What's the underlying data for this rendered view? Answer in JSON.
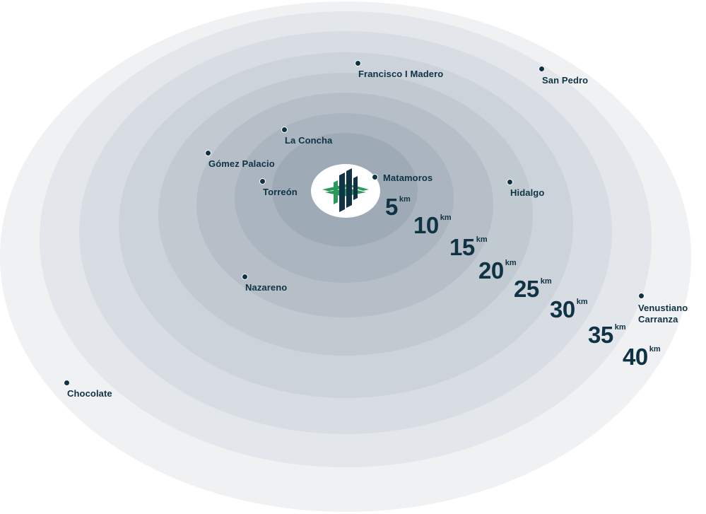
{
  "map": {
    "places": [
      {
        "name": "Francisco I Madero"
      },
      {
        "name": "San Pedro"
      },
      {
        "name": "La Concha"
      },
      {
        "name": "Gómez Palacio"
      },
      {
        "name": "Matamoros"
      },
      {
        "name": "Torreón"
      },
      {
        "name": "Hidalgo"
      },
      {
        "name": "Nazareno"
      },
      {
        "name": "Venustiano Carranza"
      },
      {
        "name": "Chocolate"
      }
    ],
    "rings": [
      {
        "value": "5",
        "unit": "km"
      },
      {
        "value": "10",
        "unit": "km"
      },
      {
        "value": "15",
        "unit": "km"
      },
      {
        "value": "20",
        "unit": "km"
      },
      {
        "value": "25",
        "unit": "km"
      },
      {
        "value": "30",
        "unit": "km"
      },
      {
        "value": "35",
        "unit": "km"
      },
      {
        "value": "40",
        "unit": "km"
      }
    ],
    "colors": {
      "text": "#0f3344",
      "logo_green": "#2a9a5a",
      "logo_navy": "#0f3344"
    },
    "center_icon": "company-logo-icon"
  }
}
